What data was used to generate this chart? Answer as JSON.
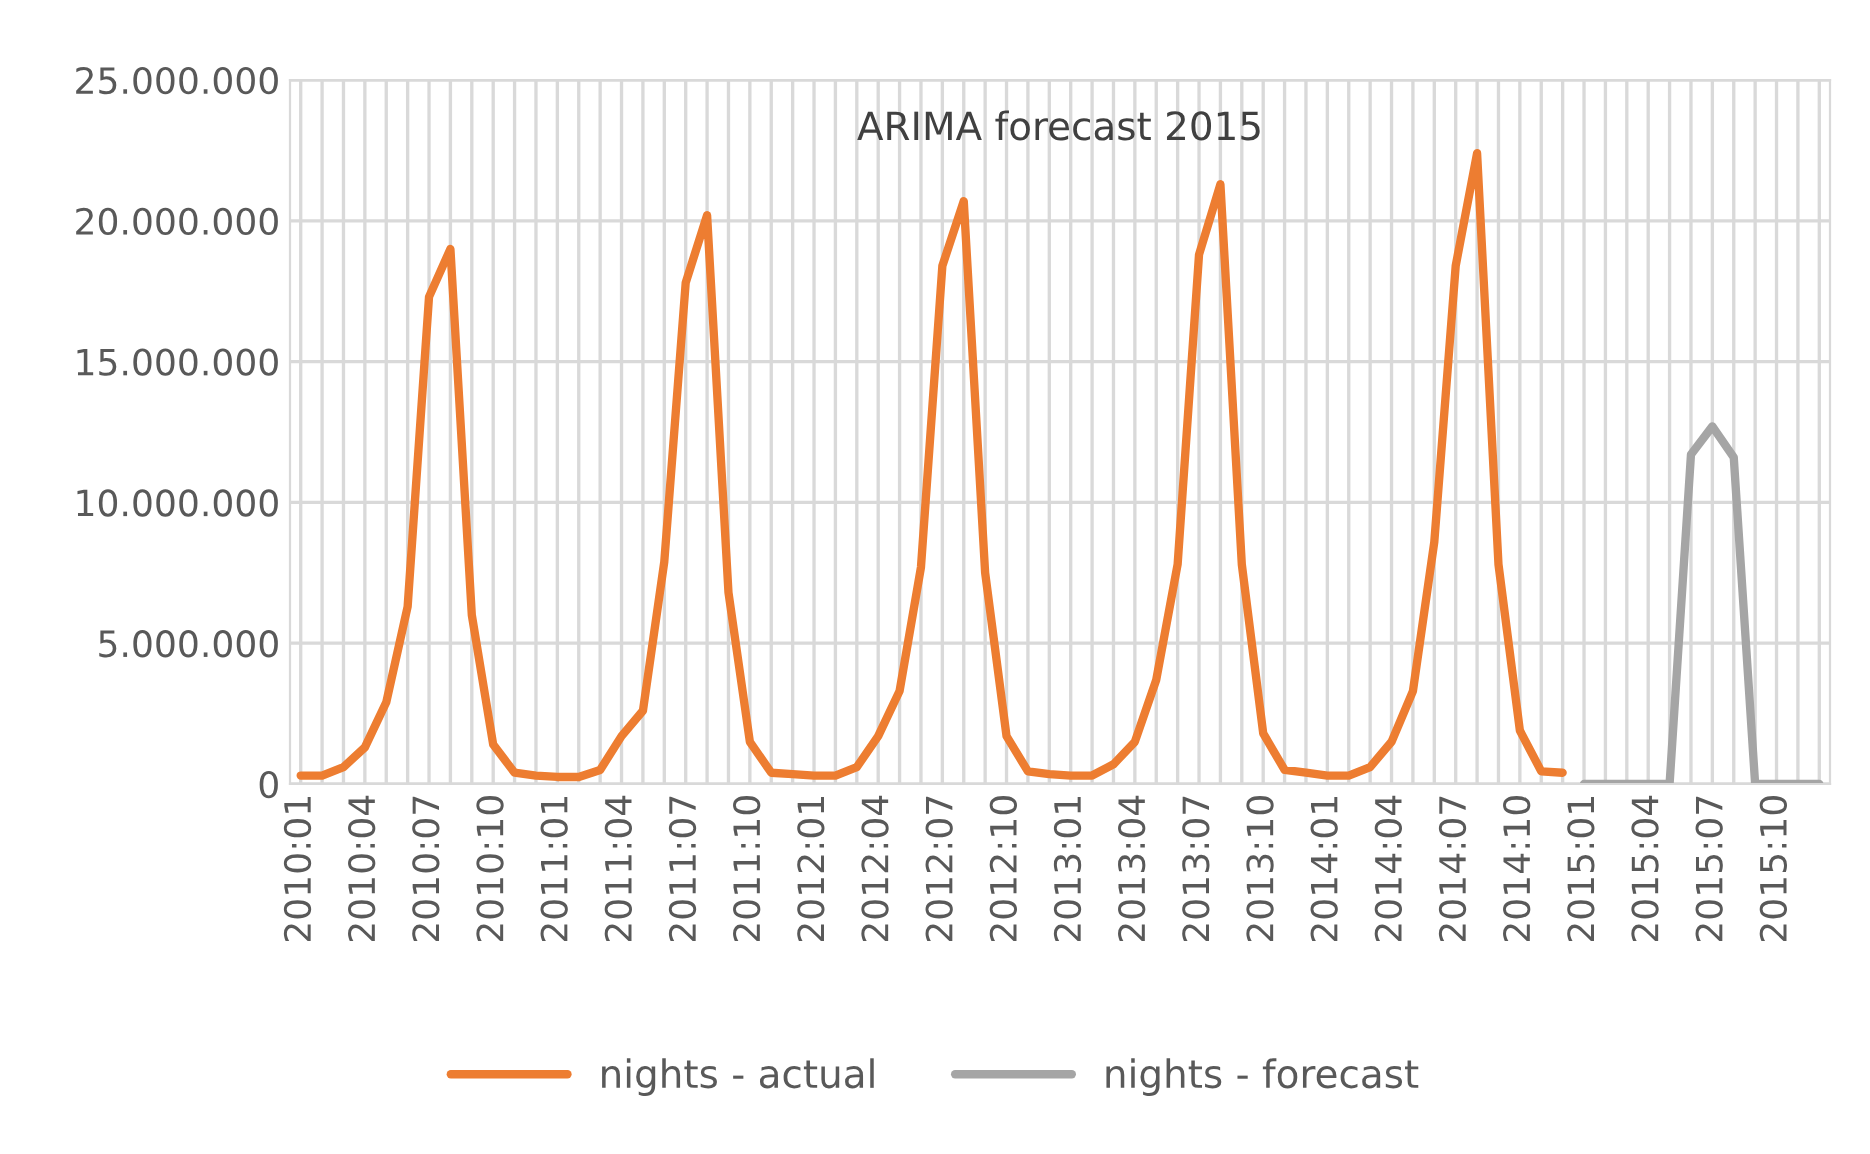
{
  "chart_data": {
    "type": "line",
    "annotations": [
      "ARIMA forecast 2015"
    ],
    "categories": [
      "2010:01",
      null,
      null,
      "2010:04",
      null,
      null,
      "2010:07",
      null,
      null,
      "2010:10",
      null,
      null,
      "2011:01",
      null,
      null,
      "2011:04",
      null,
      null,
      "2011:07",
      null,
      null,
      "2011:10",
      null,
      null,
      "2012:01",
      null,
      null,
      "2012:04",
      null,
      null,
      "2012:07",
      null,
      null,
      "2012:10",
      null,
      null,
      "2013:01",
      null,
      null,
      "2013:04",
      null,
      null,
      "2013:07",
      null,
      null,
      "2013:10",
      null,
      null,
      "2014:01",
      null,
      null,
      "2014:04",
      null,
      null,
      "2014:07",
      null,
      null,
      "2014:10",
      null,
      null,
      "2015:01",
      null,
      null,
      "2015:04",
      null,
      null,
      "2015:07",
      null,
      null,
      "2015:10",
      null,
      null
    ],
    "series": [
      {
        "name": "nights - actual",
        "color": "#ed7d31",
        "values": [
          300000,
          300000,
          600000,
          1300000,
          2900000,
          6300000,
          17300000,
          19000000,
          6000000,
          1400000,
          400000,
          300000,
          250000,
          250000,
          500000,
          1700000,
          2600000,
          7900000,
          17800000,
          20200000,
          6800000,
          1500000,
          400000,
          350000,
          300000,
          300000,
          600000,
          1700000,
          3300000,
          7700000,
          18400000,
          20700000,
          7500000,
          1700000,
          450000,
          350000,
          300000,
          300000,
          700000,
          1500000,
          3700000,
          7800000,
          18800000,
          21300000,
          7800000,
          1800000,
          500000,
          400000,
          300000,
          300000,
          600000,
          1500000,
          3300000,
          8600000,
          18400000,
          22400000,
          7800000,
          1900000,
          450000,
          400000,
          null,
          null,
          null,
          null,
          null,
          null,
          null,
          null,
          null,
          null,
          null,
          null
        ]
      },
      {
        "name": "nights - forecast",
        "color": "#a5a5a5",
        "values": [
          null,
          null,
          null,
          null,
          null,
          null,
          null,
          null,
          null,
          null,
          null,
          null,
          null,
          null,
          null,
          null,
          null,
          null,
          null,
          null,
          null,
          null,
          null,
          null,
          null,
          null,
          null,
          null,
          null,
          null,
          null,
          null,
          null,
          null,
          null,
          null,
          null,
          null,
          null,
          null,
          null,
          null,
          null,
          null,
          null,
          null,
          null,
          null,
          null,
          null,
          null,
          null,
          null,
          null,
          null,
          null,
          null,
          null,
          null,
          null,
          0,
          0,
          0,
          0,
          0,
          11700000,
          12700000,
          11600000,
          0,
          0,
          0,
          0
        ]
      }
    ],
    "ylim": [
      0,
      25000000
    ],
    "yticks": [
      {
        "value": 0,
        "label": "0"
      },
      {
        "value": 5000000,
        "label": "5.000.000"
      },
      {
        "value": 10000000,
        "label": "10.000.000"
      },
      {
        "value": 15000000,
        "label": "15.000.000"
      },
      {
        "value": 20000000,
        "label": "20.000.000"
      },
      {
        "value": 25000000,
        "label": "25.000.000"
      }
    ],
    "grid": true,
    "legend": "bottom",
    "line_style": "solid",
    "marker": "none"
  }
}
